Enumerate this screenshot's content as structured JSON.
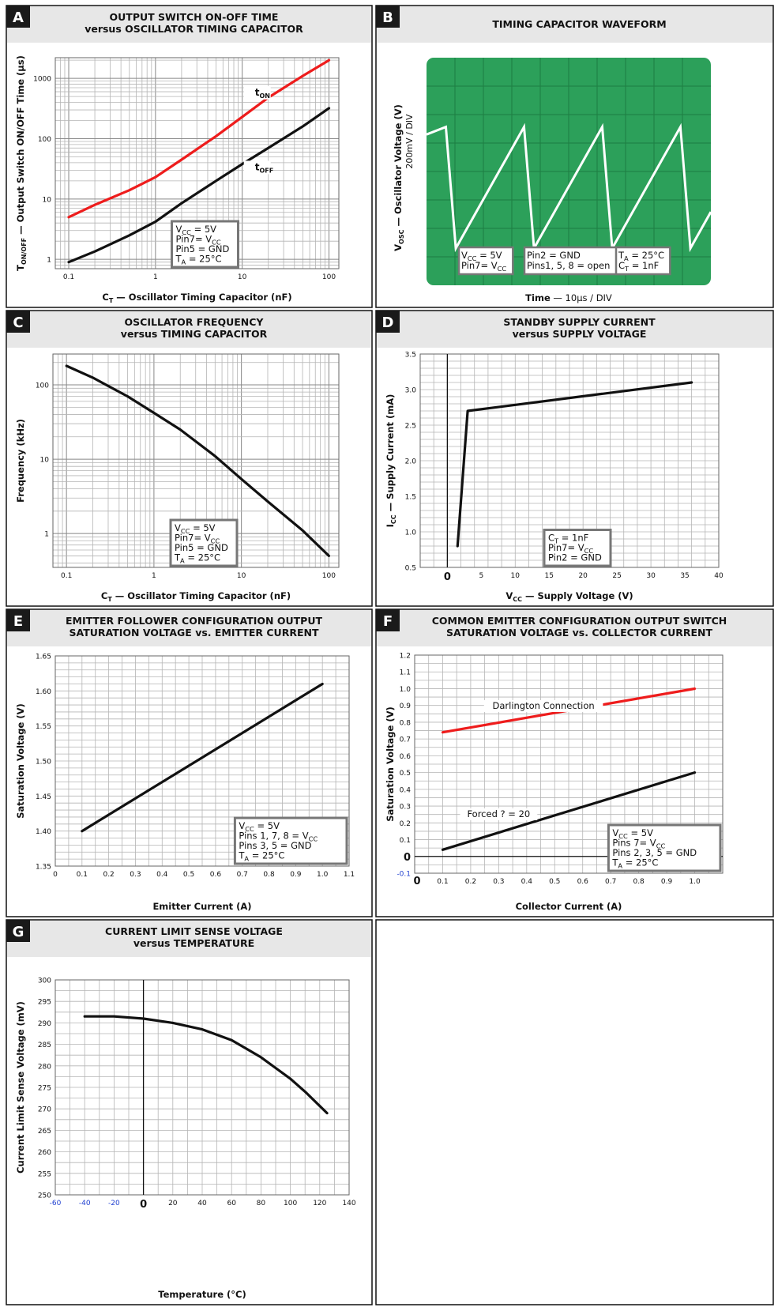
{
  "chart_data": [
    {
      "id": "A",
      "letter": "A",
      "type": "line",
      "title": [
        "OUTPUT SWITCH ON-OFF TIME",
        "versus OSCILLATOR TIMING CAPACITOR"
      ],
      "xscale": "log",
      "yscale": "log",
      "xlim": [
        0.07,
        130
      ],
      "ylim": [
        0.7,
        2200
      ],
      "xticks": [
        0.1,
        1,
        10,
        100
      ],
      "xtick_labels": [
        "0.1",
        "1",
        "10",
        "100"
      ],
      "yticks": [
        1,
        10,
        100,
        1000
      ],
      "ytick_labels": [
        "1",
        "10",
        "100",
        "1000"
      ],
      "xlabel": {
        "main": "C",
        "sub": "T",
        "rest": " — Oscillator Timing Capacitor (nF)"
      },
      "ylabel": {
        "main": "T",
        "sub": "ON/OFF",
        "rest": " — Output Switch ON/OFF Time (µs)"
      },
      "series": [
        {
          "name": "tON",
          "color": "#ee1c1c",
          "x": [
            0.1,
            0.2,
            0.5,
            1,
            2,
            5,
            10,
            20,
            50,
            100
          ],
          "y": [
            5,
            8,
            14,
            23,
            45,
            110,
            230,
            480,
            1100,
            2000
          ]
        },
        {
          "name": "tOFF",
          "color": "#111111",
          "x": [
            0.1,
            0.2,
            0.5,
            1,
            2,
            5,
            10,
            20,
            50,
            100
          ],
          "y": [
            0.9,
            1.35,
            2.5,
            4.2,
            8.5,
            20,
            38,
            70,
            160,
            320
          ]
        }
      ],
      "curve_labels": [
        {
          "main": "t",
          "sub": "ON",
          "x": 14,
          "y": 520
        },
        {
          "main": "t",
          "sub": "OFF",
          "x": 14,
          "y": 30
        }
      ],
      "legend": {
        "position": "bottom-center",
        "lines": [
          "V_CC = 5V",
          "Pin7= V_CC",
          "Pin5 = GND",
          "T_A = 25°C"
        ]
      }
    },
    {
      "id": "B",
      "letter": "B",
      "type": "scope",
      "title": [
        "TIMING CAPACITOR WAVEFORM"
      ],
      "xlabel_main": "Time",
      "xlabel_scale": " — 10µs / DIV",
      "ylabel_line1": {
        "main": "V",
        "sub": "OSC",
        "rest": " — Oscillator Voltage (V)"
      },
      "ylabel_line2": "200mV / DIV",
      "divisions_x": 10,
      "divisions_y": 8,
      "wave_low": 0.65,
      "wave_high": 2.1,
      "wave_period_div": 2.75,
      "wave_fall_div": 0.35,
      "wave_start": {
        "x_div": 0,
        "y_div": 5.3
      },
      "boxes": [
        [
          "V_CC = 5V",
          "Pin7= V_CC"
        ],
        [
          "Pin2 = GND",
          "Pins1, 5, 8 = open"
        ],
        [
          "T_A = 25°C",
          "C_T = 1nF"
        ]
      ]
    },
    {
      "id": "C",
      "letter": "C",
      "type": "line",
      "title": [
        "OSCILLATOR FREQUENCY",
        "versus TIMING CAPACITOR"
      ],
      "xscale": "log",
      "yscale": "log",
      "xlim": [
        0.07,
        130
      ],
      "ylim": [
        0.35,
        260
      ],
      "xticks": [
        0.1,
        1,
        10,
        100
      ],
      "xtick_labels": [
        "0.1",
        "1",
        "10",
        "100"
      ],
      "yticks": [
        1,
        10,
        100
      ],
      "ytick_labels": [
        "1",
        "10",
        "100"
      ],
      "xlabel": {
        "main": "C",
        "sub": "T",
        "rest": " — Oscillator Timing Capacitor (nF)"
      },
      "ylabel": {
        "main": "Frequency (kHz)",
        "sub": "",
        "rest": ""
      },
      "series": [
        {
          "name": "",
          "color": "#111111",
          "x": [
            0.1,
            0.2,
            0.5,
            1,
            2,
            5,
            10,
            20,
            50,
            100
          ],
          "y": [
            180,
            125,
            70,
            42,
            25,
            11,
            5.4,
            2.7,
            1.1,
            0.5
          ]
        }
      ],
      "curve_labels": [],
      "legend": {
        "position": "bottom-center",
        "lines": [
          "V_CC = 5V",
          "Pin7= V_CC",
          "Pin5 = GND",
          "T_A = 25°C"
        ]
      }
    },
    {
      "id": "D",
      "letter": "D",
      "type": "line",
      "title": [
        "STANDBY SUPPLY CURRENT",
        "versus SUPPLY VOLTAGE"
      ],
      "xscale": "linear",
      "yscale": "linear",
      "xlim": [
        -4,
        40
      ],
      "ylim": [
        0.5,
        3.5
      ],
      "xgrid_step": 2,
      "ygrid_step": 0.1,
      "xticks": [
        0,
        5,
        10,
        15,
        20,
        25,
        30,
        35,
        40
      ],
      "xtick_labels": [
        "0",
        "5",
        "10",
        "15",
        "20",
        "25",
        "30",
        "35",
        "40"
      ],
      "yticks": [
        0.5,
        1.0,
        1.5,
        2.0,
        2.5,
        3.0,
        3.5
      ],
      "ytick_labels": [
        "0.5",
        "1.0",
        "1.5",
        "2.0",
        "2.5",
        "3.0",
        "3.5"
      ],
      "xlabel": {
        "main": "V",
        "sub": "CC",
        "rest": " — Supply Voltage (V)"
      },
      "ylabel": {
        "main": "I",
        "sub": "CC",
        "rest": " — Supply Current (mA)"
      },
      "series": [
        {
          "name": "",
          "color": "#111111",
          "x": [
            1.5,
            3,
            36
          ],
          "y": [
            0.8,
            2.7,
            3.1
          ]
        }
      ],
      "curve_labels": [],
      "legend": {
        "position": "bottom-center",
        "lines": [
          "C_T = 1nF",
          "Pin7= V_CC",
          "Pin2 = GND"
        ]
      }
    },
    {
      "id": "E",
      "letter": "E",
      "type": "line",
      "title": [
        "EMITTER FOLLOWER CONFIGURATION OUTPUT",
        "SATURATION VOLTAGE vs. EMITTER CURRENT"
      ],
      "xscale": "linear",
      "yscale": "linear",
      "xlim": [
        0,
        1.1
      ],
      "ylim": [
        1.35,
        1.65
      ],
      "xgrid_step": 0.05,
      "ygrid_step": 0.01,
      "xticks": [
        0,
        0.1,
        0.2,
        0.3,
        0.4,
        0.5,
        0.6,
        0.7,
        0.8,
        0.9,
        1.0,
        1.1
      ],
      "xtick_labels": [
        "0",
        "0.1",
        "0.2",
        "0.3",
        "0.4",
        "0.5",
        "0.6",
        "0.7",
        "0.8",
        "0.9",
        "1.0",
        "1.1"
      ],
      "yticks": [
        1.35,
        1.4,
        1.45,
        1.5,
        1.55,
        1.6,
        1.65
      ],
      "ytick_labels": [
        "1.35",
        "1.40",
        "1.45",
        "1.50",
        "1.55",
        "1.60",
        "1.65"
      ],
      "xlabel": {
        "main": "Emitter Current (A)",
        "sub": "",
        "rest": ""
      },
      "ylabel": {
        "main": "Saturation Voltage (V)",
        "sub": "",
        "rest": ""
      },
      "series": [
        {
          "name": "",
          "color": "#111111",
          "x": [
            0.1,
            1.0
          ],
          "y": [
            1.4,
            1.61
          ]
        }
      ],
      "curve_labels": [],
      "legend": {
        "position": "bottom-right",
        "lines": [
          "V_CC = 5V",
          "Pins 1, 7, 8 = V_CC",
          "Pins 3, 5 = GND",
          "T_A = 25°C"
        ]
      }
    },
    {
      "id": "F",
      "letter": "F",
      "type": "line",
      "title": [
        "COMMON EMITTER CONFIGURATION OUTPUT SWITCH",
        "SATURATION VOLTAGE vs. COLLECTOR CURRENT"
      ],
      "xscale": "linear",
      "yscale": "linear",
      "xlim": [
        0,
        1.1
      ],
      "ylim": [
        -0.1,
        1.2
      ],
      "xgrid_step": 0.05,
      "ygrid_step": 0.05,
      "xticks": [
        0.1,
        0.2,
        0.3,
        0.4,
        0.5,
        0.6,
        0.7,
        0.8,
        0.9,
        1.0
      ],
      "xtick_labels": [
        "0.1",
        "0.2",
        "0.3",
        "0.4",
        "0.5",
        "0.6",
        "0.7",
        "0.8",
        "0.9",
        "1.0"
      ],
      "yticks": [
        -0.1,
        0.1,
        0.2,
        0.3,
        0.4,
        0.5,
        0.6,
        0.7,
        0.8,
        0.9,
        1.0,
        1.1,
        1.2
      ],
      "ytick_labels": [
        "-0.1",
        "0.1",
        "0.2",
        "0.3",
        "0.4",
        "0.5",
        "0.6",
        "0.7",
        "0.8",
        "0.9",
        "1.0",
        "1.1",
        "1.2"
      ],
      "zero_label": "0",
      "xlabel": {
        "main": "Collector Current (A)",
        "sub": "",
        "rest": ""
      },
      "ylabel": {
        "main": "Saturation Voltage (V)",
        "sub": "",
        "rest": ""
      },
      "series": [
        {
          "name": "Darlington Connection",
          "color": "#ee1c1c",
          "x": [
            0.1,
            1.0
          ],
          "y": [
            0.74,
            1.0
          ]
        },
        {
          "name": "Forced ? = 20",
          "color": "#111111",
          "x": [
            0.1,
            1.0
          ],
          "y": [
            0.04,
            0.5
          ]
        }
      ],
      "curve_labels": [
        {
          "text": "Darlington Connection",
          "x": 0.46,
          "y": 0.88
        },
        {
          "text": "Forced ? = 20",
          "x": 0.3,
          "y": 0.235
        }
      ],
      "legend": {
        "position": "bottom-right",
        "lines": [
          "V_CC = 5V",
          "Pins 7= V_CC",
          "Pins 2, 3, 5 = GND",
          "T_A = 25°C"
        ]
      }
    },
    {
      "id": "G",
      "letter": "G",
      "type": "line",
      "title": [
        "CURRENT LIMIT SENSE VOLTAGE",
        "versus TEMPERATURE"
      ],
      "xscale": "linear",
      "yscale": "linear",
      "xlim": [
        -60,
        140
      ],
      "ylim": [
        250,
        300
      ],
      "xgrid_step": 10,
      "ygrid_step": 2.5,
      "xticks": [
        -60,
        -40,
        -20,
        0,
        20,
        40,
        60,
        80,
        100,
        120,
        140
      ],
      "xtick_labels": [
        "-60",
        "-40",
        "-20",
        "0",
        "20",
        "40",
        "60",
        "80",
        "100",
        "120",
        "140"
      ],
      "yticks": [
        250,
        255,
        260,
        265,
        270,
        275,
        280,
        285,
        290,
        295,
        300
      ],
      "ytick_labels": [
        "250",
        "255",
        "260",
        "265",
        "270",
        "275",
        "280",
        "285",
        "290",
        "295",
        "300"
      ],
      "xlabel": {
        "main": "Temperature (°C)",
        "sub": "",
        "rest": ""
      },
      "ylabel": {
        "main": "Current Limit Sense Voltage (mV)",
        "sub": "",
        "rest": ""
      },
      "series": [
        {
          "name": "",
          "color": "#111111",
          "x": [
            -40,
            -20,
            0,
            20,
            40,
            60,
            70,
            80,
            90,
            100,
            110,
            125
          ],
          "y": [
            291.5,
            291.5,
            291,
            290,
            288.5,
            286,
            284,
            282,
            279.5,
            277,
            274,
            269
          ]
        }
      ],
      "curve_labels": [],
      "legend": null
    }
  ]
}
